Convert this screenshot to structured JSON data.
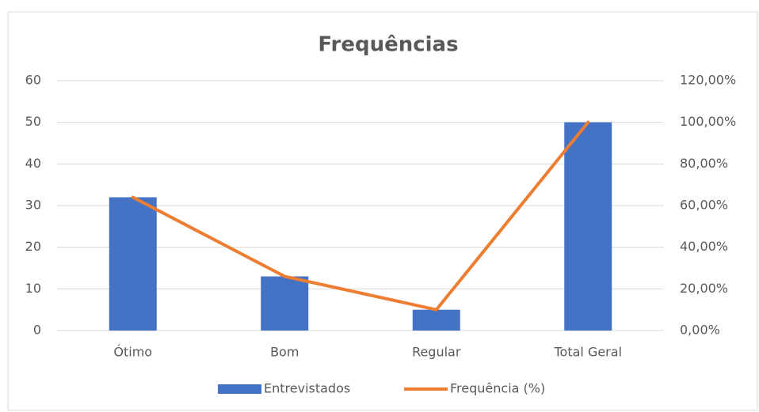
{
  "chart_data": {
    "type": "bar-line",
    "title": "Frequências",
    "categories": [
      "Ótimo",
      "Bom",
      "Regular",
      "Total Geral"
    ],
    "series": [
      {
        "name": "Entrevistados",
        "type": "bar",
        "color": "#4472c4",
        "values": [
          32,
          13,
          5,
          50
        ]
      },
      {
        "name": "Frequência (%)",
        "type": "line",
        "axis": "y2",
        "color": "#ed7d31",
        "values": [
          64,
          26,
          10,
          100
        ]
      }
    ],
    "ylim": [
      0,
      60
    ],
    "yticks": [
      0,
      10,
      20,
      30,
      40,
      50,
      60
    ],
    "y2lim": [
      0,
      120
    ],
    "y2ticks": [
      {
        "value": 0,
        "label": "0,00%"
      },
      {
        "value": 20,
        "label": "20,00%"
      },
      {
        "value": 40,
        "label": "40,00%"
      },
      {
        "value": 60,
        "label": "60,00%"
      },
      {
        "value": 80,
        "label": "80,00%"
      },
      {
        "value": 100,
        "label": "100,00%"
      },
      {
        "value": 120,
        "label": "120,00%"
      }
    ],
    "grid": true,
    "legend": "bottom"
  }
}
